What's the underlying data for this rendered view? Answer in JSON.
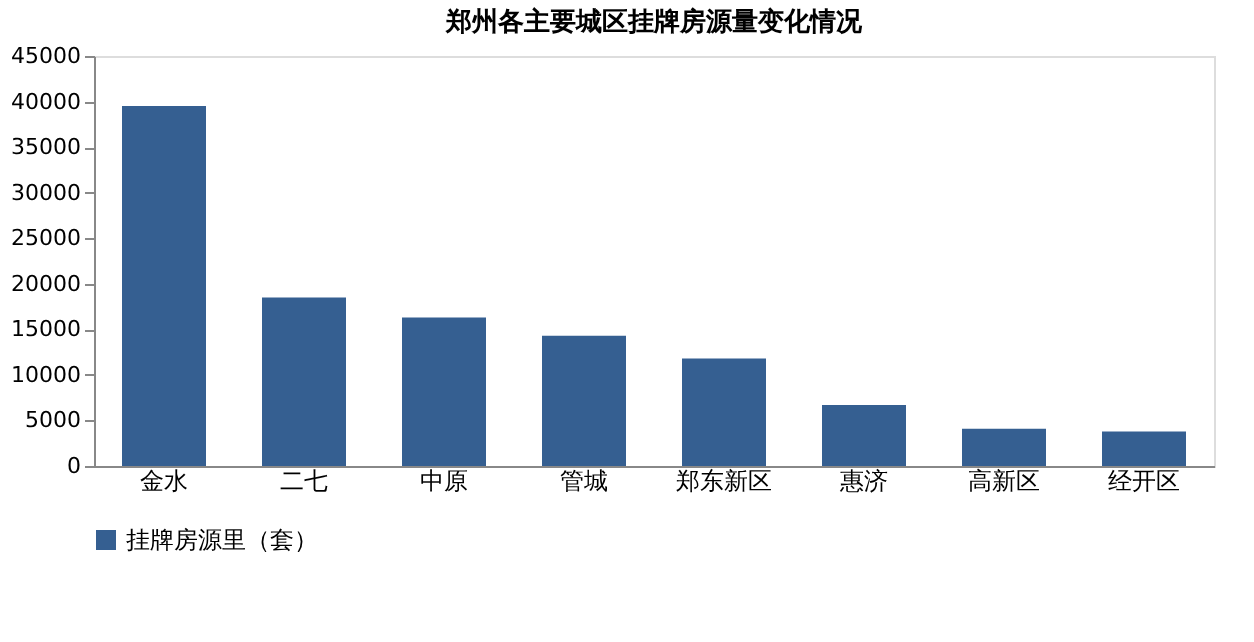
{
  "chart_data": {
    "type": "bar",
    "title": "郑州各主要城区挂牌房源量变化情况",
    "categories": [
      "金水",
      "二七",
      "中原",
      "管城",
      "郑东新区",
      "惠济",
      "高新区",
      "经开区"
    ],
    "series": [
      {
        "name": "挂牌房源里（套）",
        "color": "#355f91",
        "values": [
          39500,
          18500,
          16300,
          14300,
          11800,
          6700,
          4100,
          3800
        ]
      }
    ],
    "ylim": [
      0,
      45000
    ],
    "yticks": [
      0,
      5000,
      10000,
      15000,
      20000,
      25000,
      30000,
      35000,
      40000,
      45000
    ],
    "grid": false,
    "legend": "bottom"
  }
}
